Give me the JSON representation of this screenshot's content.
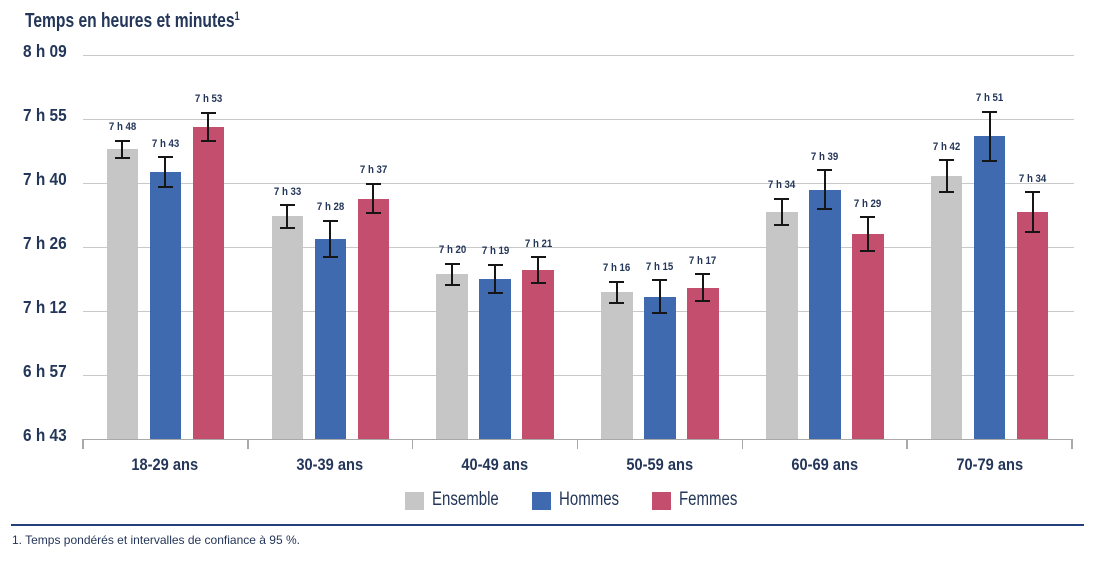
{
  "title": {
    "text": "Temps en heures et minutes",
    "footnote_marker": "1"
  },
  "footnote": "1. Temps pondérés et intervalles de confiance à 95 %.",
  "colors": {
    "background": "#ffffff",
    "text": "#243659",
    "gridline": "#c9c9c9",
    "axis": "#a9a9a9",
    "error_bar": "#161616",
    "footnote_rule": "#24407c",
    "ensemble": "#c6c6c6",
    "hommes": "#3f6ab0",
    "femmes": "#c34e6d"
  },
  "chart_data": {
    "type": "bar",
    "title": "Temps en heures et minutes",
    "xlabel": "",
    "ylabel": "Temps en heures et minutes",
    "categories": [
      "18-29 ans",
      "30-39 ans",
      "40-49 ans",
      "50-59 ans",
      "60-69 ans",
      "70-79 ans"
    ],
    "series": [
      {
        "name": "Ensemble",
        "color": "#c6c6c6",
        "values_minutes": [
          468,
          453,
          440,
          436,
          454,
          462
        ],
        "value_labels": [
          "7 h 48",
          "7 h 33",
          "7 h 20",
          "7 h 16",
          "7 h 34",
          "7 h 42"
        ],
        "ci_halfwidth_minutes": [
          2.0,
          2.5,
          2.4,
          2.4,
          3.0,
          3.6
        ]
      },
      {
        "name": "Hommes",
        "color": "#3f6ab0",
        "values_minutes": [
          463,
          448,
          439,
          435,
          459,
          471
        ],
        "value_labels": [
          "7 h 43",
          "7 h 28",
          "7 h 19",
          "7 h 15",
          "7 h 39",
          "7 h 51"
        ],
        "ci_halfwidth_minutes": [
          3.3,
          4.0,
          3.2,
          3.7,
          4.4,
          5.5
        ]
      },
      {
        "name": "Femmes",
        "color": "#c34e6d",
        "values_minutes": [
          473,
          457,
          441,
          437,
          449,
          454
        ],
        "value_labels": [
          "7 h 53",
          "7 h 37",
          "7 h 21",
          "7 h 17",
          "7 h 29",
          "7 h 34"
        ],
        "ci_halfwidth_minutes": [
          3.2,
          3.3,
          2.9,
          3.0,
          3.8,
          4.4
        ]
      }
    ],
    "y_ticks": [
      {
        "minutes": 489.0,
        "label": "8 h 09"
      },
      {
        "minutes": 474.67,
        "label": "7 h 55"
      },
      {
        "minutes": 460.33,
        "label": "7 h 40"
      },
      {
        "minutes": 446.0,
        "label": "7 h 26"
      },
      {
        "minutes": 431.67,
        "label": "7 h 12"
      },
      {
        "minutes": 417.33,
        "label": "6 h 57"
      },
      {
        "minutes": 403.0,
        "label": "6 h 43"
      }
    ],
    "ylim_minutes": [
      403,
      489
    ],
    "grid": true,
    "legend_position": "bottom",
    "error_bars": "intervalles de confiance à 95 %"
  }
}
